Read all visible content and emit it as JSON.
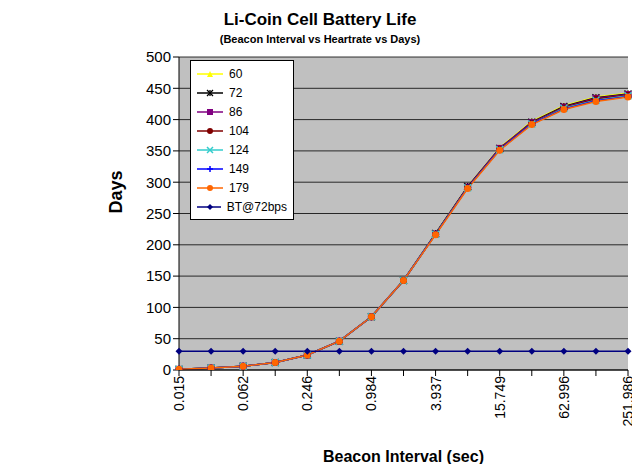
{
  "chart_data": {
    "type": "line",
    "title": "Li-Coin Cell Battery Life",
    "subtitle": "(Beacon Interval vs Heartrate vs Days)",
    "x_label": "Beacon Interval (sec)",
    "y_label": "Days",
    "categories": [
      "0.015",
      null,
      "0.062",
      null,
      "0.246",
      null,
      "0.984",
      null,
      "3.937",
      null,
      "15.749",
      null,
      "62.996",
      null,
      "251.986"
    ],
    "ylim": [
      0,
      500
    ],
    "yticks": [
      0,
      50,
      100,
      150,
      200,
      250,
      300,
      350,
      400,
      450,
      500
    ],
    "grid": true,
    "legend": "top-left",
    "series": [
      {
        "name": "60",
        "color": "#ffff00",
        "marker": "triangle",
        "values": [
          1,
          3,
          6,
          12,
          24,
          46,
          85,
          143,
          218,
          293,
          355,
          397,
          422,
          436,
          442
        ]
      },
      {
        "name": "72",
        "color": "#000000",
        "marker": "star",
        "values": [
          1,
          3,
          6,
          12,
          24,
          46,
          85,
          143,
          218,
          293,
          354,
          396,
          421,
          435,
          441
        ]
      },
      {
        "name": "86",
        "color": "#800080",
        "marker": "square",
        "values": [
          1,
          3,
          6,
          12,
          24,
          46,
          85,
          143,
          217,
          292,
          354,
          395,
          420,
          434,
          440
        ]
      },
      {
        "name": "104",
        "color": "#800000",
        "marker": "circle",
        "values": [
          1,
          3,
          6,
          12,
          24,
          46,
          85,
          143,
          217,
          292,
          353,
          394,
          419,
          433,
          439
        ]
      },
      {
        "name": "124",
        "color": "#33cccc",
        "marker": "cross",
        "values": [
          1,
          3,
          6,
          12,
          24,
          46,
          85,
          143,
          217,
          291,
          352,
          393,
          418,
          431,
          438
        ]
      },
      {
        "name": "149",
        "color": "#0000ff",
        "marker": "plus",
        "values": [
          1,
          3,
          6,
          12,
          24,
          46,
          85,
          143,
          217,
          291,
          352,
          393,
          417,
          430,
          437
        ]
      },
      {
        "name": "179",
        "color": "#ff6600",
        "marker": "circle",
        "values": [
          1,
          3,
          6,
          12,
          24,
          46,
          85,
          143,
          216,
          290,
          351,
          392,
          416,
          429,
          436
        ]
      },
      {
        "name": "BT@72bps",
        "color": "#000080",
        "marker": "diamond",
        "values": [
          30,
          30,
          30,
          30,
          30,
          30,
          30,
          30,
          30,
          30,
          30,
          30,
          30,
          30,
          30
        ]
      }
    ]
  }
}
